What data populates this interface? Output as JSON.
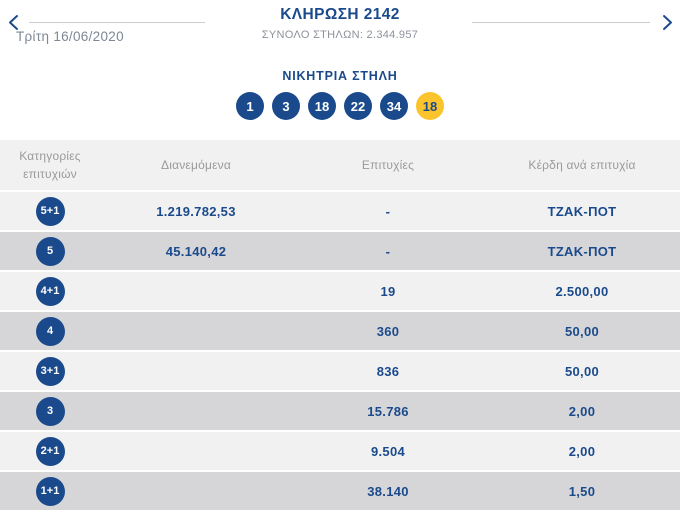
{
  "colors": {
    "primary_blue": "#1a4a8c",
    "bonus_yellow": "#fcc42c",
    "row_light": "#f1f1f2",
    "row_dark": "#d6d6d8",
    "header_text_gray": "#9a9a9a"
  },
  "header": {
    "title": "ΚΛΗΡΩΣΗ 2142",
    "total_columns": "ΣΥΝΟΛΟ ΣΤΗΛΩΝ: 2.344.957",
    "date": "Τρίτη 16/06/2020",
    "prev_icon": "chevron-left",
    "next_icon": "chevron-right"
  },
  "winning": {
    "heading": "ΝΙΚΗΤΡΙΑ ΣΤΗΛΗ",
    "numbers": [
      "1",
      "3",
      "18",
      "22",
      "34"
    ],
    "bonus": "18"
  },
  "table": {
    "columns": [
      "Κατηγορίες επιτυχιών",
      "Διανεμόμενα",
      "Επιτυχίες",
      "Κέρδη ανά επιτυχία"
    ],
    "rows": [
      {
        "category": "5+1",
        "distributed": "1.219.782,53",
        "winners": "-",
        "prize": "ΤΖΑΚ-ΠΟΤ"
      },
      {
        "category": "5",
        "distributed": "45.140,42",
        "winners": "-",
        "prize": "ΤΖΑΚ-ΠΟΤ"
      },
      {
        "category": "4+1",
        "distributed": "",
        "winners": "19",
        "prize": "2.500,00"
      },
      {
        "category": "4",
        "distributed": "",
        "winners": "360",
        "prize": "50,00"
      },
      {
        "category": "3+1",
        "distributed": "",
        "winners": "836",
        "prize": "50,00"
      },
      {
        "category": "3",
        "distributed": "",
        "winners": "15.786",
        "prize": "2,00"
      },
      {
        "category": "2+1",
        "distributed": "",
        "winners": "9.504",
        "prize": "2,00"
      },
      {
        "category": "1+1",
        "distributed": "",
        "winners": "38.140",
        "prize": "1,50"
      }
    ]
  }
}
